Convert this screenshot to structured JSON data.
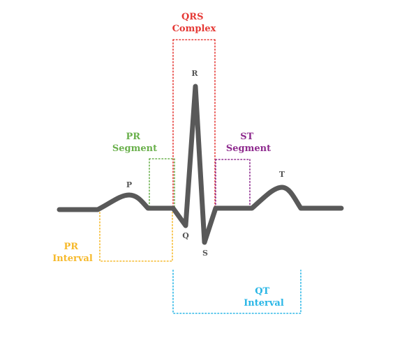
{
  "colors": {
    "qrs": "#e53935",
    "pr_segment": "#6ab04c",
    "st": "#8e2a8e",
    "pr_interval": "#f6b92b",
    "qt": "#29b6e6",
    "wave": "#595959",
    "wave_labels": "#555555"
  },
  "labels": {
    "qrs": {
      "line1": "QRS",
      "line2": "Complex"
    },
    "pr_segment": {
      "line1": "PR",
      "line2": "Segment"
    },
    "st_segment": {
      "line1": "ST",
      "line2": "Segment"
    },
    "pr_interval": {
      "line1": "PR",
      "line2": "Interval"
    },
    "qt_interval": {
      "line1": "QT",
      "line2": "Interval"
    }
  },
  "waves": {
    "p": "P",
    "q": "Q",
    "r": "R",
    "s": "S",
    "t": "T"
  }
}
